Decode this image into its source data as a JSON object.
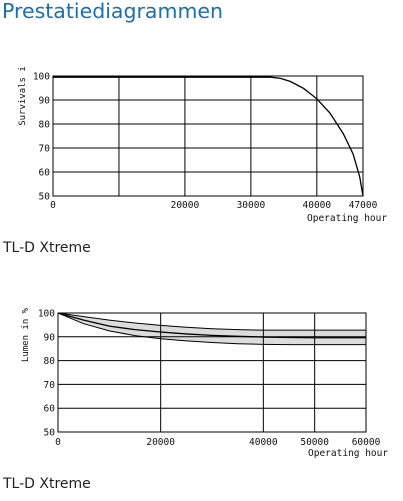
{
  "page": {
    "title": "Prestatiediagrammen"
  },
  "captions": [
    "TL-D Xtreme",
    "TL-D Xtreme"
  ],
  "colors": {
    "title": "#1a6fb0",
    "axis": "#000000",
    "band_fill": "#dcdcdc"
  },
  "chart_data": [
    {
      "type": "line",
      "title": "",
      "xlabel": "Operating hour",
      "ylabel": "Survivals i",
      "xlim": [
        0,
        47000
      ],
      "ylim": [
        50,
        100
      ],
      "x_ticks": [
        0,
        20000,
        30000,
        40000,
        47000
      ],
      "x_tick_labels": [
        "0",
        "20000",
        "30000",
        "40000",
        "47000"
      ],
      "y_ticks": [
        50,
        60,
        70,
        80,
        90,
        100
      ],
      "y_tick_labels": [
        "50",
        "60",
        "70",
        "80",
        "90",
        "100"
      ],
      "x_grid": [
        0,
        10000,
        20000,
        30000,
        40000,
        47000
      ],
      "grid": true,
      "series": [
        {
          "x": [
            0,
            33000,
            34500,
            36000,
            38000,
            40000,
            42000,
            44000,
            45500,
            46500,
            47000
          ],
          "y": [
            99.5,
            99.5,
            99,
            97.7,
            94.8,
            90.5,
            84.5,
            76,
            67.5,
            58,
            50
          ]
        }
      ]
    },
    {
      "type": "area",
      "title": "",
      "xlabel": "Operating hour",
      "ylabel": "Lumen in %",
      "xlim": [
        0,
        60000
      ],
      "ylim": [
        50,
        100
      ],
      "x_ticks": [
        0,
        20000,
        40000,
        50000,
        60000
      ],
      "x_tick_labels": [
        "0",
        "20000",
        "40000",
        "50000",
        "60000"
      ],
      "y_ticks": [
        50,
        60,
        70,
        80,
        90,
        100
      ],
      "y_tick_labels": [
        "50",
        "60",
        "70",
        "80",
        "90",
        "100"
      ],
      "x_grid": [
        0,
        20000,
        40000,
        50000,
        60000
      ],
      "grid": true,
      "band": {
        "x": [
          0,
          5000,
          10000,
          15000,
          20000,
          25000,
          30000,
          35000,
          40000,
          45000,
          50000,
          55000,
          60000
        ],
        "upper": [
          100,
          98.5,
          97,
          95.8,
          94.8,
          94,
          93.4,
          93,
          92.8,
          92.8,
          92.8,
          92.8,
          92.8
        ],
        "lower": [
          100,
          95.5,
          92.5,
          90.5,
          89.2,
          88.3,
          87.6,
          87.1,
          86.8,
          86.7,
          86.7,
          86.7,
          86.7
        ]
      },
      "series": [
        {
          "x": [
            0,
            5000,
            10000,
            15000,
            20000,
            25000,
            30000,
            35000,
            40000,
            45000,
            50000,
            55000,
            60000
          ],
          "y": [
            100,
            97,
            94.5,
            93,
            92,
            91.2,
            90.6,
            90.2,
            89.9,
            89.7,
            89.6,
            89.6,
            89.6
          ]
        }
      ]
    }
  ]
}
